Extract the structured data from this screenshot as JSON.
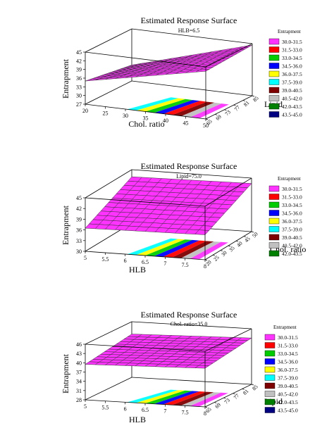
{
  "colors": {
    "surface": "#ff33ff",
    "surface_line": "#333333",
    "box": "#000000",
    "legend": [
      "#ff33ff",
      "#ff0000",
      "#00cc00",
      "#0000ff",
      "#ffff00",
      "#00ffff",
      "#7f0000",
      "#c0c0c0",
      "#008000",
      "#000080"
    ]
  },
  "chart_data": [
    {
      "type": "surface3d",
      "title": "Estimated Response Surface",
      "subtitle": "HLB=6.5",
      "xlabel": "Chol. ratio",
      "ylabel": "Lipid",
      "zlabel": "Entrapment",
      "x_ticks": [
        "20",
        "25",
        "30",
        "35",
        "40",
        "45",
        "50"
      ],
      "y_ticks": [
        "65",
        "69",
        "73",
        "77",
        "81",
        "85"
      ],
      "z_ticks": [
        "27",
        "30",
        "33",
        "36",
        "39",
        "42",
        "45"
      ],
      "xlim": [
        20,
        50
      ],
      "ylim": [
        65,
        85
      ],
      "zlim": [
        27,
        45
      ],
      "surface_corners": {
        "x_min_y_min": 35.0,
        "x_max_y_min": 43.5,
        "x_min_y_max": 32.5,
        "x_max_y_max": 44.5
      },
      "legend_title": "Entrapment",
      "legend": [
        "30.0-31.5",
        "31.5-33.0",
        "33.0-34.5",
        "34.5-36.0",
        "36.0-37.5",
        "37.5-39.0",
        "39.0-40.5",
        "40.5-42.0",
        "42.0-43.5",
        "43.5-45.0"
      ]
    },
    {
      "type": "surface3d",
      "title": "Estimated Response Surface",
      "subtitle": "Lipid=75.0",
      "xlabel": "HLB",
      "ylabel": "Chol. ratio",
      "zlabel": "Entrapment",
      "x_ticks": [
        "5",
        "5.5",
        "6",
        "6.5",
        "7",
        "7.5",
        "8"
      ],
      "y_ticks": [
        "20",
        "25",
        "30",
        "35",
        "40",
        "45",
        "50"
      ],
      "z_ticks": [
        "30",
        "33",
        "36",
        "39",
        "42",
        "45"
      ],
      "xlim": [
        5,
        8
      ],
      "ylim": [
        20,
        50
      ],
      "zlim": [
        30,
        45
      ],
      "surface_corners": {
        "x_min_y_min": 36.5,
        "x_max_y_min": 37.0,
        "x_min_y_max": 43.0,
        "x_max_y_max": 43.5
      },
      "legend_title": "Entrapment",
      "legend": [
        "30.0-31.5",
        "31.5-33.0",
        "33.0-34.5",
        "34.5-36.0",
        "36.0-37.5",
        "37.5-39.0",
        "39.0-40.5",
        "40.5-42.0",
        "42.0-43.5"
      ]
    },
    {
      "type": "surface3d",
      "title": "Estimated Response Surface",
      "subtitle": "Chol. ratio=35.0",
      "xlabel": "HLB",
      "ylabel": "Lipid",
      "zlabel": "Entrapment",
      "x_ticks": [
        "5",
        "5.5",
        "6",
        "6.5",
        "7",
        "7.5",
        "8"
      ],
      "y_ticks": [
        "65",
        "69",
        "73",
        "77",
        "81",
        "85"
      ],
      "z_ticks": [
        "28",
        "31",
        "34",
        "37",
        "40",
        "43",
        "46"
      ],
      "xlim": [
        5,
        8
      ],
      "ylim": [
        65,
        85
      ],
      "zlim": [
        28,
        46
      ],
      "surface_corners": {
        "x_min_y_min": 39.5,
        "x_max_y_min": 40.5,
        "x_min_y_max": 42.0,
        "x_max_y_max": 43.0
      },
      "legend_title": "Entrapment",
      "legend": [
        "30.0-31.5",
        "31.5-33.0",
        "33.0-34.5",
        "34.5-36.0",
        "36.0-37.5",
        "37.5-39.0",
        "39.0-40.5",
        "40.5-42.0",
        "42.0-43.5",
        "43.5-45.0"
      ]
    }
  ]
}
